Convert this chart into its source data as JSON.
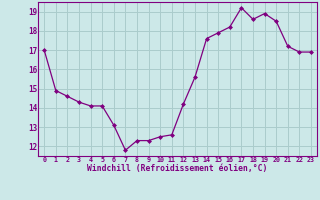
{
  "x": [
    0,
    1,
    2,
    3,
    4,
    5,
    6,
    7,
    8,
    9,
    10,
    11,
    12,
    13,
    14,
    15,
    16,
    17,
    18,
    19,
    20,
    21,
    22,
    23
  ],
  "y": [
    17.0,
    14.9,
    14.6,
    14.3,
    14.1,
    14.1,
    13.1,
    11.8,
    12.3,
    12.3,
    12.5,
    12.6,
    14.2,
    15.6,
    17.6,
    17.9,
    18.2,
    19.2,
    18.6,
    18.9,
    18.5,
    17.2,
    16.9,
    16.9
  ],
  "xlabel": "Windchill (Refroidissement éolien,°C)",
  "xlim": [
    -0.5,
    23.5
  ],
  "ylim": [
    11.5,
    19.5
  ],
  "yticks": [
    12,
    13,
    14,
    15,
    16,
    17,
    18,
    19
  ],
  "xticks": [
    0,
    1,
    2,
    3,
    4,
    5,
    6,
    7,
    8,
    9,
    10,
    11,
    12,
    13,
    14,
    15,
    16,
    17,
    18,
    19,
    20,
    21,
    22,
    23
  ],
  "line_color": "#800080",
  "marker": "D",
  "marker_size": 2.0,
  "bg_color": "#cce8e8",
  "grid_color": "#aacccc",
  "tick_color": "#800080",
  "label_color": "#800080",
  "spine_color": "#800080"
}
